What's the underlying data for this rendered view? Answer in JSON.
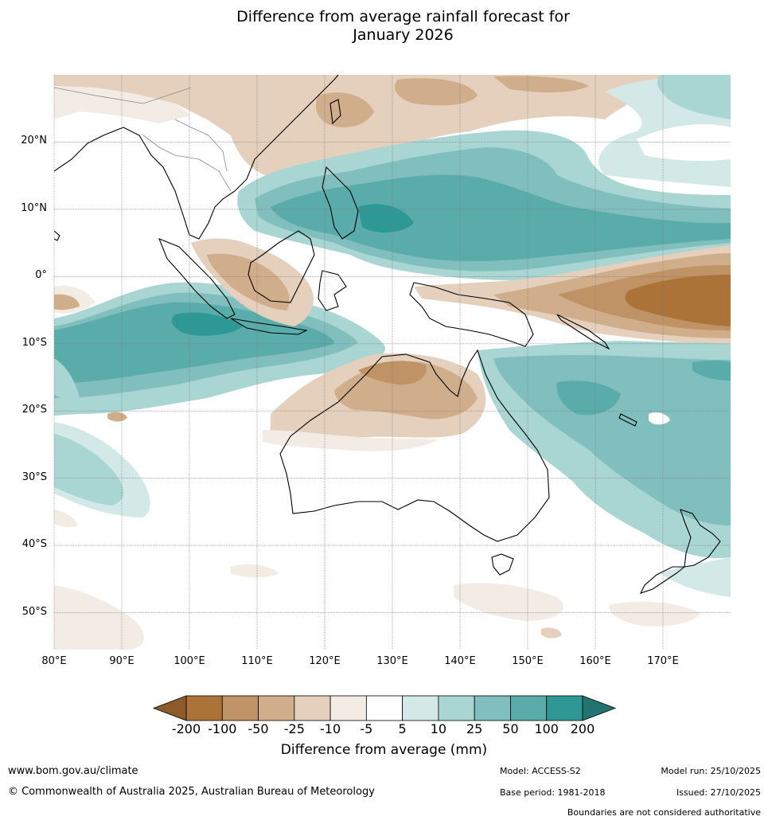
{
  "title": {
    "line1": "Difference from average rainfall forecast for",
    "line2": "January 2026"
  },
  "map": {
    "lat_labels": [
      "20°N",
      "10°N",
      "0°",
      "10°S",
      "20°S",
      "30°S",
      "40°S",
      "50°S"
    ],
    "lon_labels": [
      "80°E",
      "90°E",
      "100°E",
      "110°E",
      "120°E",
      "130°E",
      "140°E",
      "150°E",
      "160°E",
      "170°E"
    ],
    "lat_values": [
      20,
      10,
      0,
      -10,
      -20,
      -30,
      -40,
      -50
    ],
    "lon_values": [
      80,
      90,
      100,
      110,
      120,
      130,
      140,
      150,
      160,
      170
    ],
    "extent": {
      "lon_min": 80,
      "lon_max": 180,
      "lat_min": -55.5,
      "lat_max": 30
    }
  },
  "colorbar": {
    "title": "Difference from average (mm)",
    "ticks": [
      "-200",
      "-100",
      "-50",
      "-25",
      "-10",
      "-5",
      "5",
      "10",
      "25",
      "50",
      "100",
      "200"
    ],
    "colors": [
      "#ab7338",
      "#bf9365",
      "#d1ae8b",
      "#e4d0bc",
      "#f3ece4",
      "#ffffff",
      "#d3e9e8",
      "#a9d5d3",
      "#81bfbe",
      "#5aacab",
      "#2e9895"
    ],
    "low_extend_color": "#8c5a2b",
    "high_extend_color": "#227472"
  },
  "footer": {
    "website": "www.bom.gov.au/climate",
    "copyright": "© Commonwealth of Australia 2025, Australian Bureau of Meteorology",
    "model": "Model: ACCESS-S2",
    "base_period": "Base period: 1981-2018",
    "model_run": "Model run: 25/10/2025",
    "issued": "Issued: 27/10/2025",
    "disclaimer": "Boundaries are not considered authoritative"
  }
}
